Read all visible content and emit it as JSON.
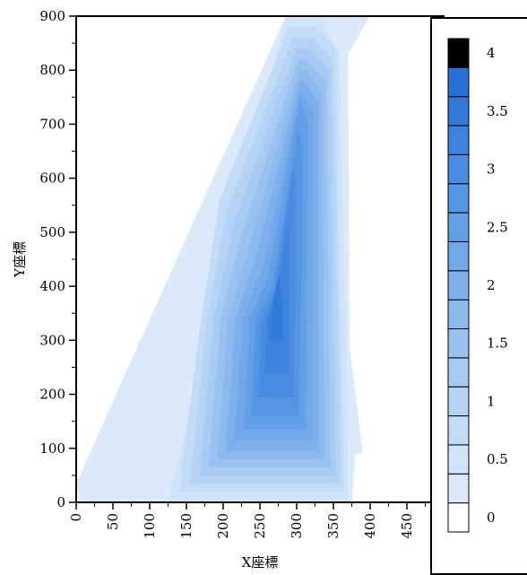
{
  "chart_data": {
    "type": "contour",
    "xlabel": "X座標",
    "ylabel": "Y座標",
    "xlim": [
      0,
      500
    ],
    "ylim": [
      0,
      900
    ],
    "x_ticks": [
      "0",
      "50",
      "100",
      "150",
      "200",
      "250",
      "300",
      "350",
      "400",
      "450"
    ],
    "y_ticks": [
      "0",
      "100",
      "200",
      "300",
      "400",
      "500",
      "600",
      "700",
      "800",
      "900"
    ],
    "peak": {
      "x": 268,
      "y": 360,
      "value": 3.6
    },
    "levels": [
      0,
      0.25,
      0.5,
      0.75,
      1,
      1.25,
      1.5,
      1.75,
      2,
      2.25,
      2.5,
      2.75,
      3,
      3.25,
      3.5,
      3.75,
      4
    ],
    "colors": [
      "#ffffff",
      "#dbeafb",
      "#cfe3f9",
      "#c2dbf7",
      "#b5d3f5",
      "#a8cbf3",
      "#9ac2f1",
      "#8cbaef",
      "#7eb1ec",
      "#70a8ea",
      "#629fe7",
      "#5596e4",
      "#488de1",
      "#3c84dd",
      "#307bd9",
      "#2673d5",
      "#000000"
    ],
    "colorbar_labels": [
      "0",
      "0.5",
      "1",
      "1.5",
      "2",
      "2.5",
      "3",
      "3.5",
      "4"
    ],
    "regions": [
      {
        "level": 0.25,
        "polygon": [
          [
            120,
            0
          ],
          [
            375,
            0
          ],
          [
            380,
            90
          ],
          [
            390,
            90
          ],
          [
            372,
            290
          ],
          [
            370,
            830
          ],
          [
            400,
            900
          ],
          [
            285,
            900
          ],
          [
            0,
            35
          ],
          [
            5,
            0
          ]
        ]
      },
      {
        "level": 0.5,
        "polygon": [
          [
            125,
            0
          ],
          [
            370,
            0
          ],
          [
            368,
            290
          ],
          [
            358,
            830
          ],
          [
            333,
            900
          ],
          [
            285,
            900
          ]
        ]
      },
      {
        "level": 0.75,
        "polygon": [
          [
            140,
            20
          ],
          [
            365,
            20
          ],
          [
            360,
            300
          ],
          [
            353,
            840
          ],
          [
            328,
            880
          ],
          [
            290,
            880
          ],
          [
            195,
            560
          ],
          [
            170,
            340
          ]
        ]
      },
      {
        "level": 1,
        "polygon": [
          [
            155,
            35
          ],
          [
            360,
            35
          ],
          [
            356,
            310
          ],
          [
            349,
            820
          ],
          [
            322,
            860
          ],
          [
            295,
            860
          ],
          [
            205,
            540
          ],
          [
            178,
            340
          ]
        ]
      },
      {
        "level": 1.25,
        "polygon": [
          [
            168,
            50
          ],
          [
            353,
            50
          ],
          [
            350,
            320
          ],
          [
            345,
            800
          ],
          [
            318,
            840
          ],
          [
            300,
            840
          ],
          [
            215,
            520
          ],
          [
            187,
            340
          ]
        ]
      },
      {
        "level": 1.5,
        "polygon": [
          [
            180,
            65
          ],
          [
            346,
            65
          ],
          [
            344,
            330
          ],
          [
            340,
            780
          ],
          [
            314,
            820
          ],
          [
            302,
            820
          ],
          [
            226,
            500
          ],
          [
            197,
            340
          ]
        ]
      },
      {
        "level": 1.75,
        "polygon": [
          [
            192,
            80
          ],
          [
            338,
            80
          ],
          [
            337,
            340
          ],
          [
            335,
            760
          ],
          [
            312,
            800
          ],
          [
            303,
            800
          ],
          [
            237,
            480
          ],
          [
            207,
            340
          ]
        ]
      },
      {
        "level": 2,
        "polygon": [
          [
            203,
            95
          ],
          [
            330,
            95
          ],
          [
            330,
            350
          ],
          [
            330,
            740
          ],
          [
            310,
            780
          ],
          [
            304,
            780
          ],
          [
            246,
            460
          ],
          [
            217,
            340
          ]
        ]
      },
      {
        "level": 2.25,
        "polygon": [
          [
            215,
            115
          ],
          [
            321,
            115
          ],
          [
            322,
            360
          ],
          [
            324,
            720
          ],
          [
            308,
            760
          ],
          [
            304,
            760
          ],
          [
            255,
            440
          ],
          [
            227,
            340
          ]
        ]
      },
      {
        "level": 2.5,
        "polygon": [
          [
            228,
            135
          ],
          [
            312,
            135
          ],
          [
            314,
            370
          ],
          [
            316,
            700
          ],
          [
            306,
            740
          ],
          [
            303,
            740
          ],
          [
            262,
            420
          ],
          [
            236,
            340
          ]
        ]
      },
      {
        "level": 2.75,
        "polygon": [
          [
            238,
            160
          ],
          [
            304,
            160
          ],
          [
            306,
            380
          ],
          [
            308,
            660
          ],
          [
            302,
            690
          ],
          [
            267,
            400
          ],
          [
            244,
            340
          ]
        ]
      },
      {
        "level": 3,
        "polygon": [
          [
            248,
            195
          ],
          [
            296,
            195
          ],
          [
            298,
            385
          ],
          [
            299,
            600
          ],
          [
            295,
            620
          ],
          [
            270,
            390
          ],
          [
            252,
            340
          ]
        ]
      },
      {
        "level": 3.25,
        "polygon": [
          [
            256,
            240
          ],
          [
            289,
            240
          ],
          [
            290,
            390
          ],
          [
            289,
            520
          ],
          [
            272,
            380
          ],
          [
            259,
            340
          ]
        ]
      },
      {
        "level": 3.5,
        "polygon": [
          [
            263,
            300
          ],
          [
            281,
            300
          ],
          [
            281,
            370
          ],
          [
            276,
            420
          ],
          [
            268,
            380
          ]
        ]
      }
    ]
  },
  "colors": {
    "frame": "#000000",
    "background": "#ffffff"
  }
}
